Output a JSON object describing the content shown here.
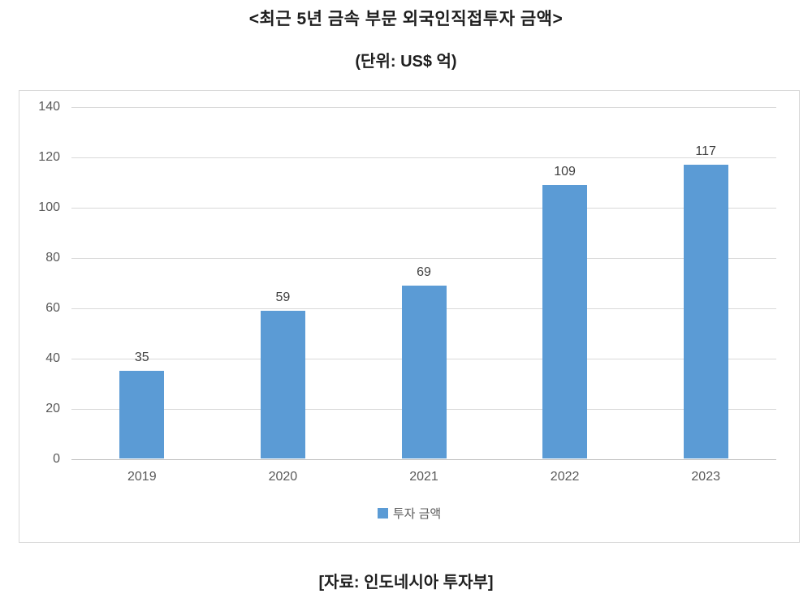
{
  "title": "<최근 5년 금속 부문 외국인직접투자 금액>",
  "subtitle": "(단위: US$ 억)",
  "source": "[자료: 인도네시아 투자부]",
  "legend": {
    "label": "투자 금액",
    "swatch_color": "#5b9bd5"
  },
  "chart_data": {
    "type": "bar",
    "title": "<최근 5년 금속 부문 외국인직접투자 금액>",
    "subtitle": "(단위: US$ 억)",
    "categories": [
      "2019",
      "2020",
      "2021",
      "2022",
      "2023"
    ],
    "series": [
      {
        "name": "투자 금액",
        "values": [
          35,
          59,
          69,
          109,
          117
        ]
      }
    ],
    "data_labels": [
      "35",
      "59",
      "69",
      "109",
      "117"
    ],
    "xlabel": "",
    "ylabel": "",
    "ylim": [
      0,
      140
    ],
    "yticks": [
      0,
      20,
      40,
      60,
      80,
      100,
      120,
      140
    ],
    "grid": true,
    "legend_position": "bottom",
    "colors": {
      "bar": "#5b9bd5",
      "gridline": "#d9d9d9",
      "axis_line": "#bfbfbf",
      "axis_text": "#595959",
      "data_label": "#404040",
      "chart_border": "#d9d9d9"
    }
  }
}
